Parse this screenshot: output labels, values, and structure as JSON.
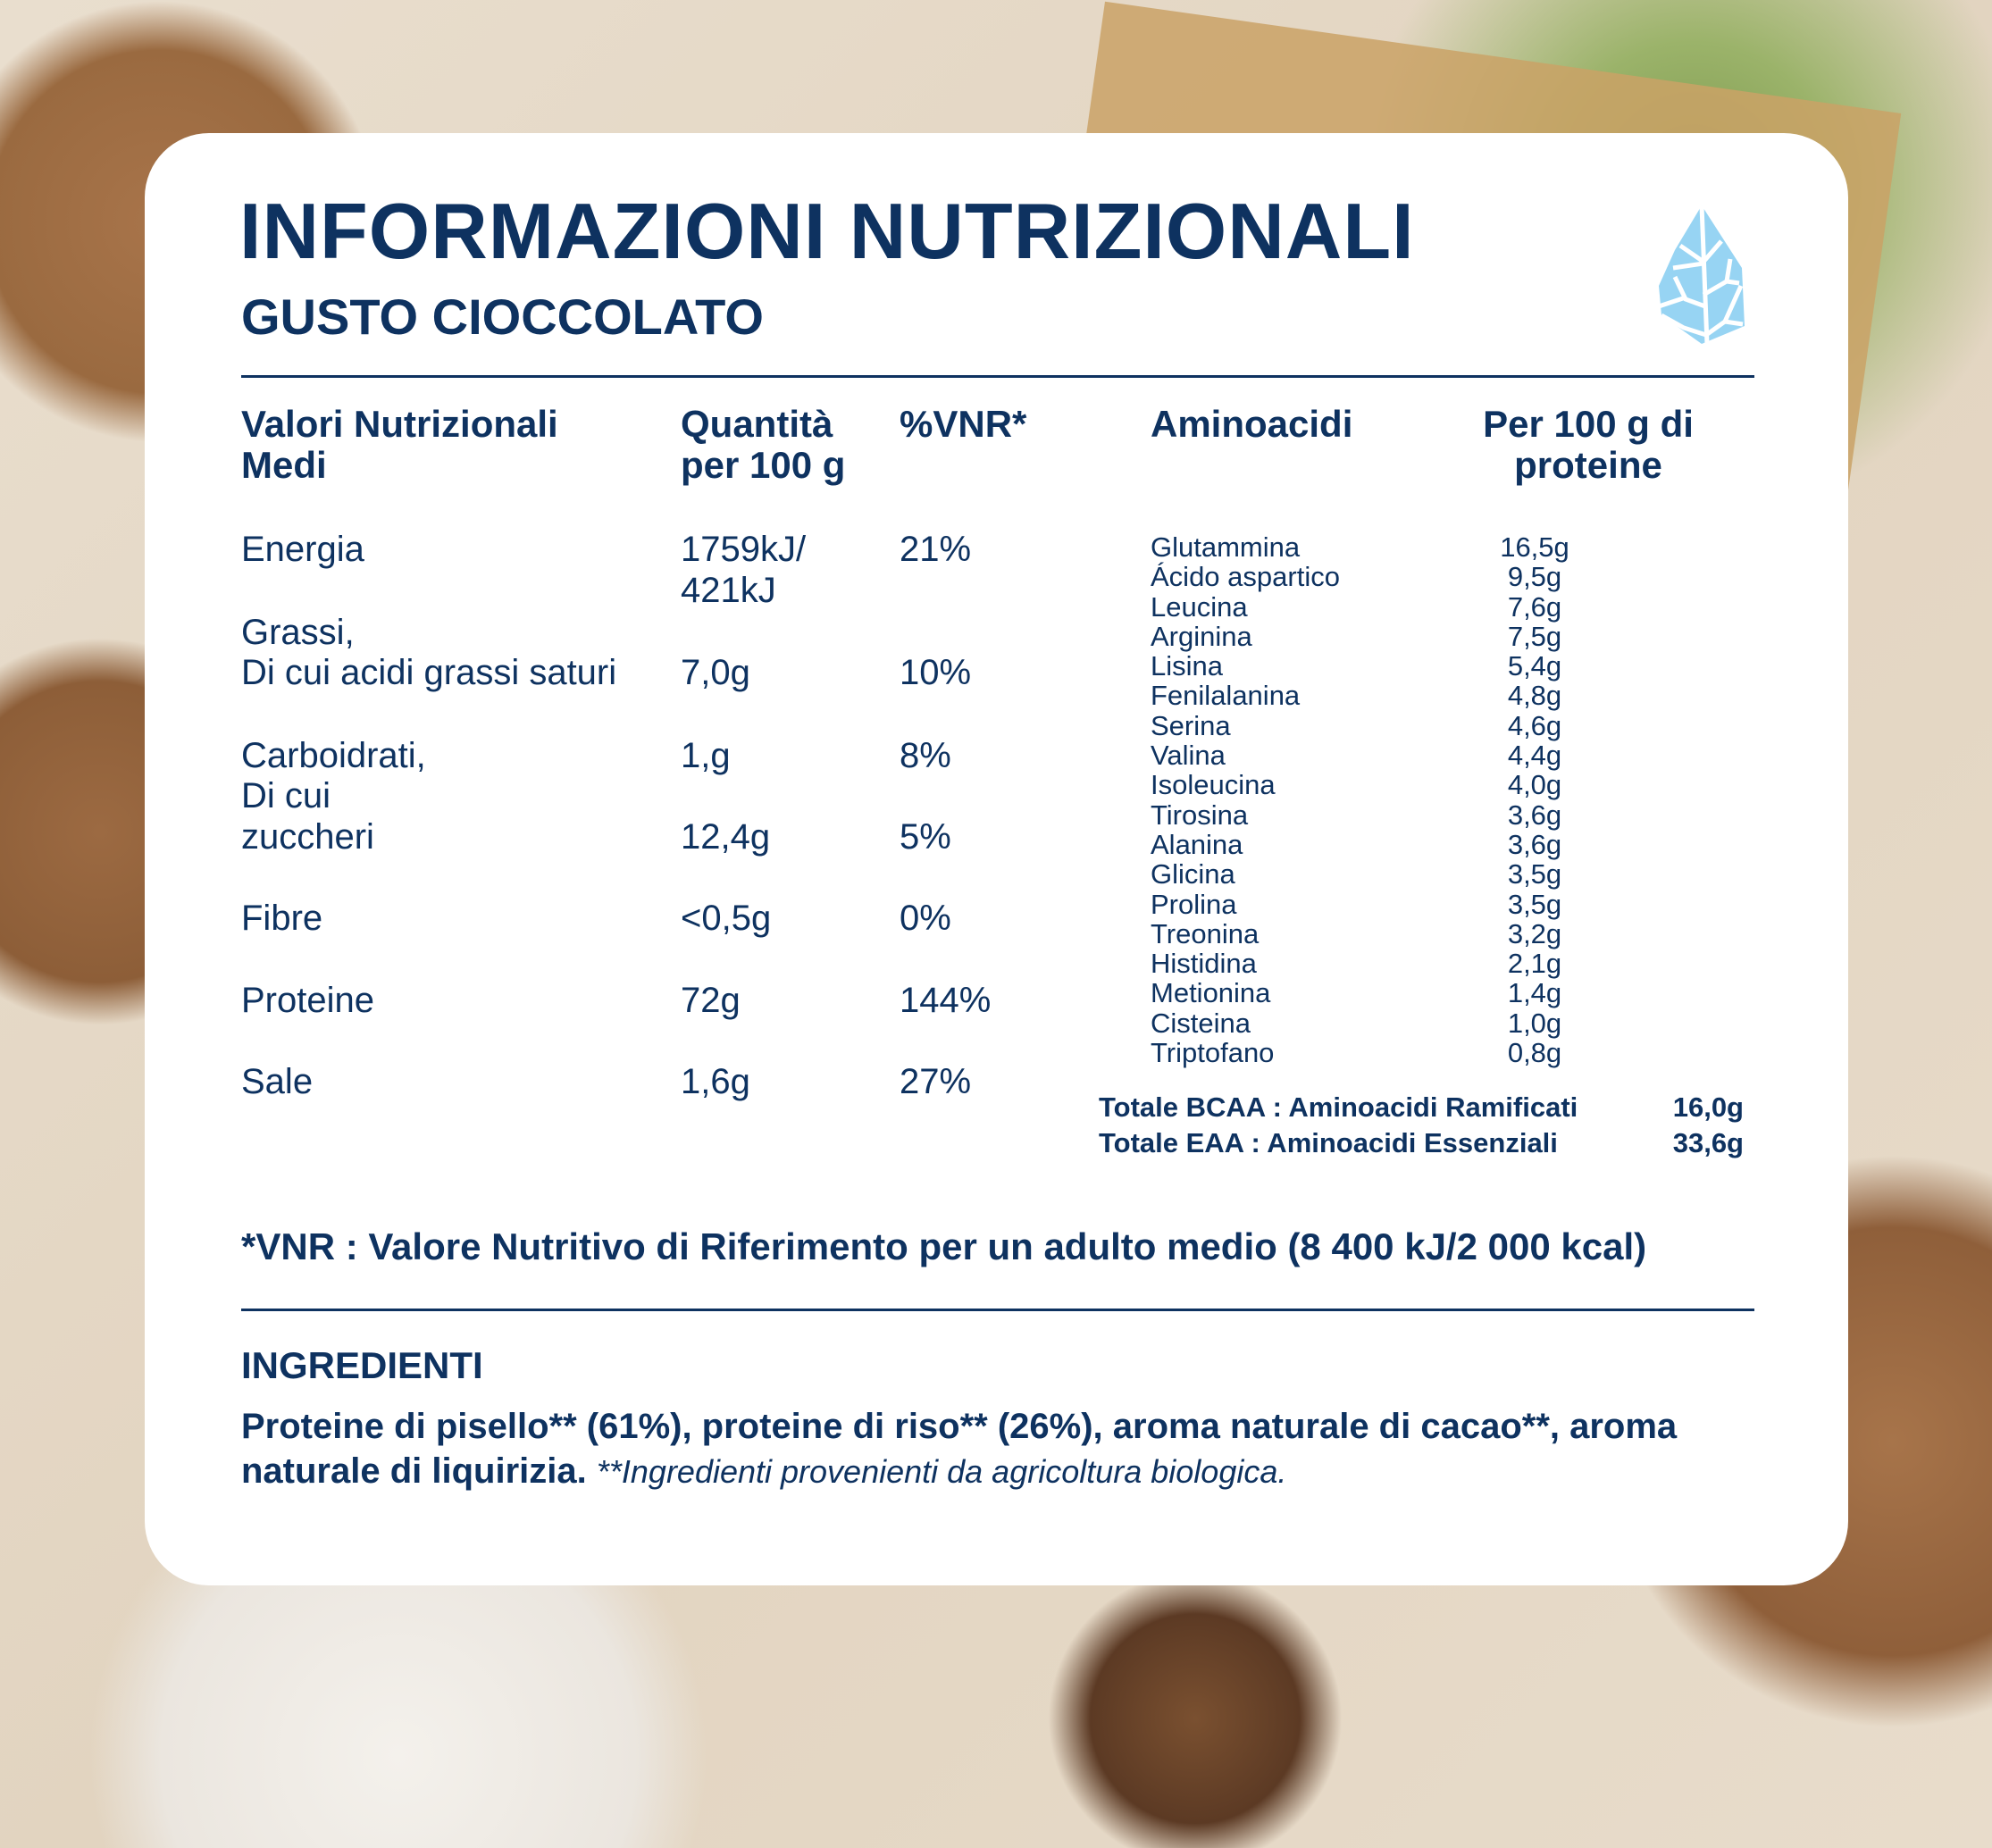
{
  "title": "INFORMAZIONI NUTRIZIONALI",
  "subtitle": "GUSTO CIOCCOLATO",
  "logo": "leaf-drop-icon",
  "colors": {
    "text": "#0e3260",
    "logo": "#97d4f3",
    "card": "#ffffff"
  },
  "nutrition": {
    "headers": {
      "name": "Valori Nutrizionali Medi",
      "qty": "Quantità per 100 g",
      "vnr": "%VNR*"
    },
    "rows": [
      {
        "name": "Energia",
        "qty": "1759kJ/ 421kJ",
        "vnr": "21%"
      },
      {
        "name": "Grassi,"
      },
      {
        "name": "Di cui acidi grassi saturi",
        "qty": "7,0g",
        "vnr": "10%"
      },
      {
        "name": "Carboidrati,",
        "qty": "1,g",
        "vnr": "8%"
      },
      {
        "name": "Di cui"
      },
      {
        "name": "zuccheri",
        "qty": "12,4g",
        "vnr": "5%"
      },
      {
        "name": "Fibre",
        "qty": "<0,5g",
        "vnr": "0%"
      },
      {
        "name": "Proteine",
        "qty": "72g",
        "vnr": "144%"
      },
      {
        "name": "Sale",
        "qty": "1,6g",
        "vnr": "27%"
      }
    ]
  },
  "amino": {
    "headers": {
      "name": "Aminoacidi",
      "value": "Per 100 g di proteine"
    },
    "items": [
      {
        "name": "Glutammina",
        "value": "16,5g"
      },
      {
        "name": "Ácido aspartico",
        "value": "9,5g"
      },
      {
        "name": "Leucina",
        "value": "7,6g"
      },
      {
        "name": "Arginina",
        "value": "7,5g"
      },
      {
        "name": "Lisina",
        "value": "5,4g"
      },
      {
        "name": "Fenilalanina",
        "value": "4,8g"
      },
      {
        "name": "Serina",
        "value": "4,6g"
      },
      {
        "name": "Valina",
        "value": "4,4g"
      },
      {
        "name": "Isoleucina",
        "value": "4,0g"
      },
      {
        "name": "Tirosina",
        "value": "3,6g"
      },
      {
        "name": "Alanina",
        "value": "3,6g"
      },
      {
        "name": "Glicina",
        "value": "3,5g"
      },
      {
        "name": "Prolina",
        "value": "3,5g"
      },
      {
        "name": "Treonina",
        "value": "3,2g"
      },
      {
        "name": "Histidina",
        "value": "2,1g"
      },
      {
        "name": "Metionina",
        "value": "1,4g"
      },
      {
        "name": "Cisteina",
        "value": "1,0g"
      },
      {
        "name": "Triptofano",
        "value": "0,8g"
      }
    ],
    "totals": [
      {
        "label": "Totale BCAA : Aminoacidi Ramificati",
        "value": "16,0g"
      },
      {
        "label": "Totale EAA : Aminoacidi Essenziali",
        "value": "33,6g"
      }
    ]
  },
  "footnote": "*VNR : Valore Nutritivo di Riferimento per un adulto medio (8 400 kJ/2 000 kcal)",
  "ingredients": {
    "heading": "INGREDIENTI",
    "text": "Proteine di pisello** (61%), proteine di riso** (26%), aroma naturale di cacao**, aroma naturale di liquirizia.",
    "note": "**Ingredienti provenienti da agricoltura biologica."
  }
}
